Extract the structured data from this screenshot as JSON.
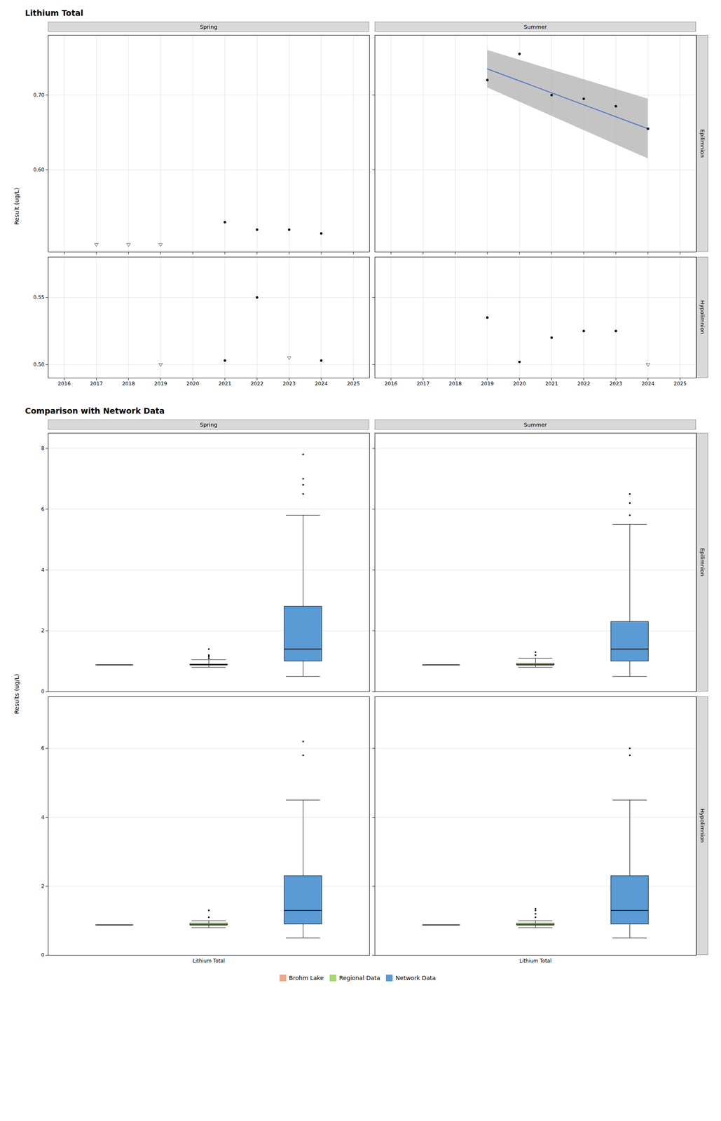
{
  "chart_data": [
    {
      "type": "scatter",
      "title": "Lithium Total",
      "y_label": "Result (ug/L)",
      "column_labels": [
        "Spring",
        "Summer"
      ],
      "row_labels": [
        "Epilimnion",
        "Hypolimnion"
      ],
      "panels": [
        {
          "xlim": [
            2015.5,
            2025.5
          ],
          "xticks": [
            2016,
            2017,
            2018,
            2019,
            2020,
            2021,
            2022,
            2023,
            2024,
            2025
          ],
          "ylim": [
            0.49,
            0.78
          ],
          "yticks": [
            0.6,
            0.7
          ],
          "grid": true,
          "tick_labels": "y",
          "series": [
            {
              "type": "scatter",
              "marker": "open_triangle_down",
              "color": "#555555",
              "x": [
                2017,
                2018,
                2019
              ],
              "values": [
                0.5,
                0.5,
                0.5
              ]
            },
            {
              "type": "scatter",
              "marker": "circle",
              "color": "#111111",
              "x": [
                2021,
                2022,
                2023,
                2024
              ],
              "values": [
                0.53,
                0.52,
                0.52,
                0.515
              ]
            }
          ]
        },
        {
          "xlim": [
            2015.5,
            2025.5
          ],
          "xticks": [
            2016,
            2017,
            2018,
            2019,
            2020,
            2021,
            2022,
            2023,
            2024,
            2025
          ],
          "ylim": [
            0.49,
            0.78
          ],
          "yticks": [
            0.6,
            0.7
          ],
          "grid": true,
          "tick_labels": false,
          "series": [
            {
              "type": "area",
              "color": "#b0b0b0",
              "x": [
                2019,
                2024
              ],
              "lower": [
                0.71,
                0.615
              ],
              "upper": [
                0.76,
                0.695
              ]
            },
            {
              "type": "line",
              "color": "#4472c4",
              "x": [
                2019,
                2024
              ],
              "values": [
                0.735,
                0.655
              ]
            },
            {
              "type": "scatter",
              "marker": "circle",
              "color": "#111111",
              "x": [
                2019,
                2020,
                2021,
                2022,
                2023,
                2024
              ],
              "values": [
                0.72,
                0.755,
                0.7,
                0.695,
                0.685,
                0.655
              ]
            }
          ]
        },
        {
          "xlim": [
            2015.5,
            2025.5
          ],
          "xticks": [
            2016,
            2017,
            2018,
            2019,
            2020,
            2021,
            2022,
            2023,
            2024,
            2025
          ],
          "ylim": [
            0.49,
            0.58
          ],
          "yticks": [
            0.5,
            0.55
          ],
          "grid": true,
          "tick_labels": true,
          "series": [
            {
              "type": "scatter",
              "marker": "open_triangle_down",
              "color": "#555555",
              "x": [
                2019,
                2023
              ],
              "values": [
                0.5,
                0.505
              ]
            },
            {
              "type": "scatter",
              "marker": "circle",
              "color": "#111111",
              "x": [
                2021,
                2022,
                2024
              ],
              "values": [
                0.503,
                0.55,
                0.503
              ]
            }
          ]
        },
        {
          "xlim": [
            2015.5,
            2025.5
          ],
          "xticks": [
            2016,
            2017,
            2018,
            2019,
            2020,
            2021,
            2022,
            2023,
            2024,
            2025
          ],
          "ylim": [
            0.49,
            0.58
          ],
          "yticks": [
            0.5,
            0.55
          ],
          "grid": true,
          "tick_labels": "x",
          "series": [
            {
              "type": "scatter",
              "marker": "open_triangle_down",
              "color": "#555555",
              "x": [
                2024
              ],
              "values": [
                0.5
              ]
            },
            {
              "type": "scatter",
              "marker": "circle",
              "color": "#111111",
              "x": [
                2019,
                2020,
                2021,
                2022,
                2023
              ],
              "values": [
                0.535,
                0.502,
                0.52,
                0.525,
                0.525
              ]
            }
          ]
        }
      ]
    },
    {
      "type": "box",
      "title": "Comparison with Network Data",
      "y_label": "Results (ug/L)",
      "column_labels": [
        "Spring",
        "Summer"
      ],
      "row_labels": [
        "Epilimnion",
        "Hypolimnion"
      ],
      "legend": "bottom",
      "panels": [
        {
          "categories": [
            "Lithium Total"
          ],
          "ylim": [
            0,
            8.5
          ],
          "yticks": [
            0,
            2,
            4,
            6,
            8
          ],
          "grid": "y",
          "tick_labels": "y",
          "series": [
            {
              "name": "Brohm Lake",
              "color": "#f4a582",
              "q1": [
                0.88
              ],
              "median": [
                0.88
              ],
              "q3": [
                0.88
              ],
              "whislo": [
                0.88
              ],
              "whishi": [
                0.88
              ],
              "fliers": [
                []
              ]
            },
            {
              "name": "Regional Data",
              "color": "#a6d96a",
              "q1": [
                0.88
              ],
              "median": [
                0.88
              ],
              "q3": [
                0.9
              ],
              "whislo": [
                0.8
              ],
              "whishi": [
                1.05
              ],
              "fliers": [
                [
                  1.1,
                  1.15,
                  1.2,
                  1.4
                ]
              ]
            },
            {
              "name": "Network Data",
              "color": "#5b9bd5",
              "q1": [
                1.0
              ],
              "median": [
                1.4
              ],
              "q3": [
                2.8
              ],
              "whislo": [
                0.5
              ],
              "whishi": [
                5.8
              ],
              "fliers": [
                [
                  6.5,
                  6.8,
                  7.0,
                  7.8
                ]
              ]
            }
          ]
        },
        {
          "categories": [
            "Lithium Total"
          ],
          "ylim": [
            0,
            8.5
          ],
          "yticks": [
            0,
            2,
            4,
            6,
            8
          ],
          "grid": "y",
          "tick_labels": false,
          "series": [
            {
              "name": "Brohm Lake",
              "color": "#f4a582",
              "q1": [
                0.88
              ],
              "median": [
                0.88
              ],
              "q3": [
                0.88
              ],
              "whislo": [
                0.88
              ],
              "whishi": [
                0.88
              ],
              "fliers": [
                []
              ]
            },
            {
              "name": "Regional Data",
              "color": "#a6d96a",
              "q1": [
                0.88
              ],
              "median": [
                0.88
              ],
              "q3": [
                0.92
              ],
              "whislo": [
                0.8
              ],
              "whishi": [
                1.1
              ],
              "fliers": [
                [
                  1.2,
                  1.3
                ]
              ]
            },
            {
              "name": "Network Data",
              "color": "#5b9bd5",
              "q1": [
                1.0
              ],
              "median": [
                1.4
              ],
              "q3": [
                2.3
              ],
              "whislo": [
                0.5
              ],
              "whishi": [
                5.5
              ],
              "fliers": [
                [
                  5.8,
                  6.2,
                  6.5
                ]
              ]
            }
          ]
        },
        {
          "categories": [
            "Lithium Total"
          ],
          "ylim": [
            0,
            7.5
          ],
          "yticks": [
            0,
            2,
            4,
            6
          ],
          "grid": "y",
          "tick_labels": true,
          "series": [
            {
              "name": "Brohm Lake",
              "color": "#f4a582",
              "q1": [
                0.88
              ],
              "median": [
                0.88
              ],
              "q3": [
                0.88
              ],
              "whislo": [
                0.88
              ],
              "whishi": [
                0.88
              ],
              "fliers": [
                []
              ]
            },
            {
              "name": "Regional Data",
              "color": "#a6d96a",
              "q1": [
                0.88
              ],
              "median": [
                0.88
              ],
              "q3": [
                0.92
              ],
              "whislo": [
                0.8
              ],
              "whishi": [
                1.0
              ],
              "fliers": [
                [
                  1.1,
                  1.3
                ]
              ]
            },
            {
              "name": "Network Data",
              "color": "#5b9bd5",
              "q1": [
                0.9
              ],
              "median": [
                1.3
              ],
              "q3": [
                2.3
              ],
              "whislo": [
                0.5
              ],
              "whishi": [
                4.5
              ],
              "fliers": [
                [
                  5.8,
                  6.2
                ]
              ]
            }
          ]
        },
        {
          "categories": [
            "Lithium Total"
          ],
          "ylim": [
            0,
            7.5
          ],
          "yticks": [
            0,
            2,
            4,
            6
          ],
          "grid": "y",
          "tick_labels": "x",
          "series": [
            {
              "name": "Brohm Lake",
              "color": "#f4a582",
              "q1": [
                0.88
              ],
              "median": [
                0.88
              ],
              "q3": [
                0.88
              ],
              "whislo": [
                0.88
              ],
              "whishi": [
                0.88
              ],
              "fliers": [
                []
              ]
            },
            {
              "name": "Regional Data",
              "color": "#a6d96a",
              "q1": [
                0.88
              ],
              "median": [
                0.88
              ],
              "q3": [
                0.92
              ],
              "whislo": [
                0.8
              ],
              "whishi": [
                1.0
              ],
              "fliers": [
                [
                  1.1,
                  1.2,
                  1.3,
                  1.35
                ]
              ]
            },
            {
              "name": "Network Data",
              "color": "#5b9bd5",
              "q1": [
                0.9
              ],
              "median": [
                1.3
              ],
              "q3": [
                2.3
              ],
              "whislo": [
                0.5
              ],
              "whishi": [
                4.5
              ],
              "fliers": [
                [
                  5.8,
                  6.0
                ]
              ]
            }
          ]
        }
      ]
    }
  ]
}
